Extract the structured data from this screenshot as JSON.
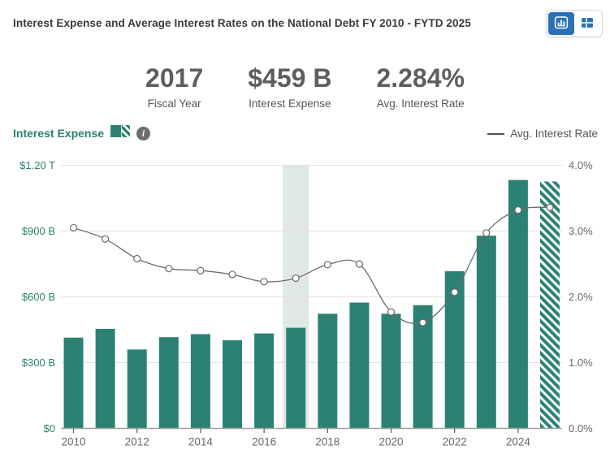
{
  "header": {
    "title": "Interest Expense and Average Interest Rates on the National Debt FY 2010 - FYTD 2025",
    "view_toggle": {
      "active_view": "chart",
      "buttons": [
        {
          "name": "chart-view",
          "icon": "bar-chart-icon"
        },
        {
          "name": "table-view",
          "icon": "table-icon"
        }
      ]
    }
  },
  "stats": [
    {
      "value": "2017",
      "label": "Fiscal Year"
    },
    {
      "value": "$459 B",
      "label": "Interest Expense"
    },
    {
      "value": "2.284%",
      "label": "Avg. Interest Rate"
    }
  ],
  "legend": {
    "left_label": "Interest Expense",
    "left_swatch": "teal-solid-and-hatched-square",
    "info_icon": "i",
    "right_swatch": "gray-line",
    "right_label": "Avg. Interest Rate"
  },
  "colors": {
    "bar_teal": "#2b8273",
    "left_axis_text": "#2b8172",
    "line_gray": "#6b6b6b",
    "right_axis_text": "#666666",
    "grid": "#e2e2e2",
    "axis_line": "#9f9f9f",
    "tick": "#555555",
    "highlight_band": "#e0e8e5",
    "accent_blue": "#2c70b5",
    "marker_fill": "#ffffff"
  },
  "chart_data": {
    "type": "bar+line combo",
    "title": "Interest Expense and Average Interest Rates on the National Debt FY 2010 - FYTD 2025",
    "x": [
      2010,
      2011,
      2012,
      2013,
      2014,
      2015,
      2016,
      2017,
      2018,
      2019,
      2020,
      2021,
      2022,
      2023,
      2024,
      2025
    ],
    "x_tick_labels": [
      "2010",
      "2012",
      "2014",
      "2016",
      "2018",
      "2020",
      "2022",
      "2024"
    ],
    "series": [
      {
        "name": "Interest Expense",
        "type": "bar",
        "axis": "left",
        "unit": "$B",
        "values": [
          414,
          454,
          360,
          416,
          430,
          402,
          433,
          459,
          523,
          574,
          523,
          562,
          717,
          879,
          1133,
          1126
        ]
      },
      {
        "name": "Avg. Interest Rate",
        "type": "line",
        "axis": "right",
        "unit": "%",
        "values": [
          3.05,
          2.88,
          2.58,
          2.43,
          2.4,
          2.34,
          2.23,
          2.284,
          2.49,
          2.5,
          1.77,
          1.61,
          2.07,
          2.97,
          3.32,
          3.36
        ]
      }
    ],
    "left_axis": {
      "ticks": [
        "$0",
        "$300 B",
        "$600 B",
        "$900 B",
        "$1.20 T"
      ],
      "range": [
        0,
        1200
      ],
      "unit": "$B"
    },
    "right_axis": {
      "ticks": [
        "0.0%",
        "1.0%",
        "2.0%",
        "3.0%",
        "4.0%"
      ],
      "range": [
        0,
        4
      ],
      "unit": "%"
    },
    "selected_year": 2017,
    "hatched_year": 2025,
    "grid": true,
    "legend_position": "top"
  }
}
